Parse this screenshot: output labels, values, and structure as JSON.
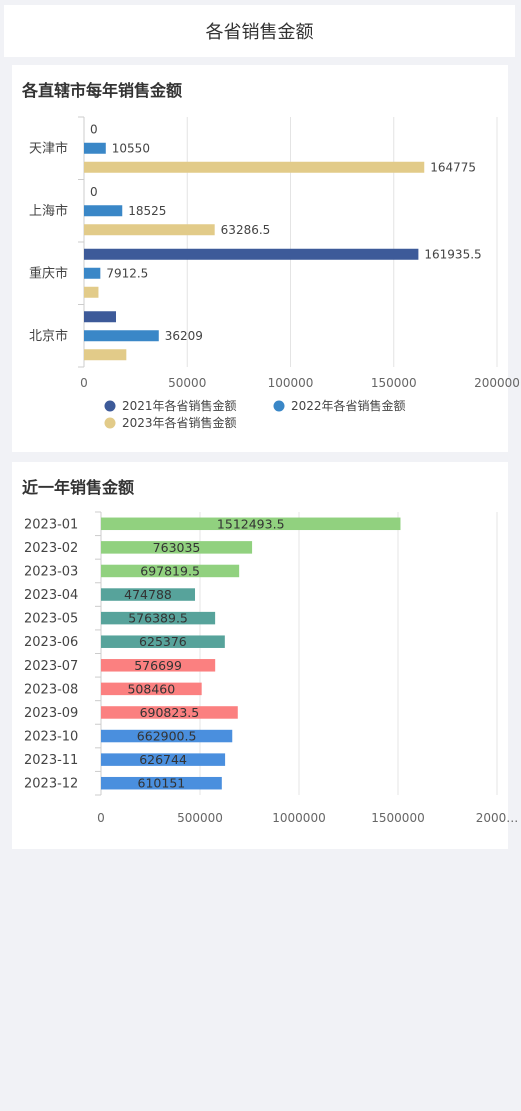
{
  "page": {
    "title": "各省销售金额"
  },
  "chart1": {
    "title": "各直辖市每年销售金额",
    "chart_data": {
      "type": "bar",
      "orientation": "horizontal",
      "categories": [
        "天津市",
        "上海市",
        "重庆市",
        "北京市"
      ],
      "series": [
        {
          "name": "2021年各省销售金额",
          "color": "#3d5a99",
          "values": [
            0,
            0,
            161935.5,
            15500
          ],
          "labels": [
            "0",
            "0",
            "161935.5",
            ""
          ]
        },
        {
          "name": "2022年各省销售金额",
          "color": "#3a87c7",
          "values": [
            10550,
            18525,
            7912.5,
            36209
          ],
          "labels": [
            "10550",
            "18525",
            "7912.5",
            "36209"
          ]
        },
        {
          "name": "2023年各省销售金额",
          "color": "#e2cb89",
          "values": [
            164775,
            63286.5,
            7000,
            20500
          ],
          "labels": [
            "164775",
            "63286.5",
            "",
            ""
          ]
        }
      ],
      "xlim": [
        0,
        200000
      ],
      "xticks": [
        "0",
        "50000",
        "100000",
        "150000",
        "200000"
      ],
      "grid": true,
      "legend": "bottom"
    }
  },
  "chart2": {
    "title": "近一年销售金额",
    "chart_data": {
      "type": "bar",
      "orientation": "horizontal",
      "categories": [
        "2023-01",
        "2023-02",
        "2023-03",
        "2023-04",
        "2023-05",
        "2023-06",
        "2023-07",
        "2023-08",
        "2023-09",
        "2023-10",
        "2023-11",
        "2023-12"
      ],
      "values": [
        1512493.5,
        763035,
        697819.5,
        474788,
        576389.5,
        625376,
        576699,
        508460,
        690823.5,
        662900.5,
        626744,
        610151
      ],
      "labels": [
        "1512493.5",
        "763035",
        "697819.5",
        "474788",
        "576389.5",
        "625376",
        "576699",
        "508460",
        "690823.5",
        "662900.5",
        "626744",
        "610151"
      ],
      "colors": [
        "#91d17f",
        "#91d17f",
        "#91d17f",
        "#57a39b",
        "#57a39b",
        "#57a39b",
        "#fb8080",
        "#fb8080",
        "#fb8080",
        "#4a8fde",
        "#4a8fde",
        "#4a8fde"
      ],
      "xlim": [
        0,
        2000000
      ],
      "xticks": [
        "0",
        "500000",
        "1000000",
        "1500000",
        "2000…"
      ],
      "grid": true
    }
  }
}
